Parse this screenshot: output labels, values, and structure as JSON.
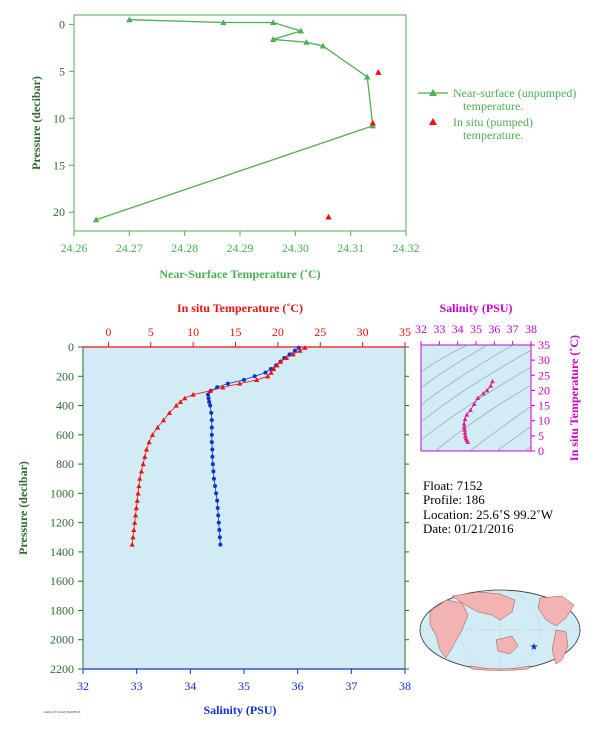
{
  "chart_data": [
    {
      "type": "line",
      "xlabel": "Near-Surface Temperature (˚C)",
      "ylabel": "Pressure (decibar)",
      "xlim": [
        24.26,
        24.32
      ],
      "ylim": [
        22,
        -1
      ],
      "xticks": [
        "24.26",
        "24.27",
        "24.28",
        "24.29",
        "24.30",
        "24.31",
        "24.32"
      ],
      "yticks": [
        "0",
        "5",
        "10",
        "15",
        "20"
      ],
      "series": [
        {
          "name": "Near-surface (unpumped) temperature.",
          "color": "#4caf50",
          "x": [
            24.27,
            24.287,
            24.296,
            24.301,
            24.296,
            24.302,
            24.305,
            24.313,
            24.314,
            24.264
          ],
          "y": [
            -0.5,
            -0.2,
            -0.2,
            0.7,
            1.6,
            1.9,
            2.3,
            5.6,
            10.8,
            20.8
          ]
        },
        {
          "name": "In situ (pumped) temperature.",
          "color": "#ee1111",
          "x": [
            24.315,
            24.314,
            24.306
          ],
          "y": [
            5.1,
            10.5,
            20.5
          ]
        }
      ],
      "legend": [
        "Near-surface (unpumped)",
        "temperature.",
        "In situ (pumped)",
        "temperature."
      ]
    },
    {
      "type": "scatter",
      "ylabel": "Pressure (decibar)",
      "x_bottom_label": "Salinity (PSU)",
      "x_top_label": "In situ Temperature (˚C)",
      "salinity_lim": [
        32,
        38
      ],
      "temperature_lim": [
        -3,
        35
      ],
      "pressure_lim": [
        0,
        2200
      ],
      "salinity_ticks": [
        "32",
        "33",
        "34",
        "35",
        "36",
        "37",
        "38"
      ],
      "temperature_ticks": [
        "0",
        "5",
        "10",
        "15",
        "20",
        "25",
        "30",
        "35"
      ],
      "pressure_ticks": [
        "0",
        "200",
        "400",
        "600",
        "800",
        "1000",
        "1200",
        "1400",
        "1600",
        "1800",
        "2000",
        "2200"
      ],
      "temperature": {
        "p": [
          5,
          25,
          50,
          75,
          100,
          125,
          150,
          175,
          200,
          225,
          250,
          275,
          300,
          325,
          350,
          375,
          400,
          450,
          500,
          550,
          600,
          650,
          700,
          750,
          800,
          850,
          900,
          950,
          1000,
          1050,
          1100,
          1150,
          1200,
          1250,
          1300,
          1350
        ],
        "t": [
          23.2,
          22.6,
          21.8,
          21.0,
          20.3,
          19.9,
          19.5,
          19.2,
          18.8,
          17.5,
          15.5,
          13.5,
          12.0,
          10.0,
          9.0,
          8.5,
          8.0,
          7.2,
          6.5,
          5.8,
          5.2,
          4.8,
          4.5,
          4.3,
          4.1,
          3.9,
          3.7,
          3.6,
          3.5,
          3.4,
          3.3,
          3.2,
          3.1,
          3.0,
          2.9,
          2.8
        ]
      },
      "salinity": {
        "p": [
          5,
          25,
          50,
          75,
          100,
          125,
          150,
          175,
          200,
          225,
          250,
          275,
          300,
          325,
          350,
          375,
          400,
          450,
          500,
          550,
          600,
          650,
          700,
          750,
          800,
          850,
          900,
          950,
          1000,
          1050,
          1100,
          1150,
          1200,
          1250,
          1300,
          1350
        ],
        "s": [
          36.02,
          35.95,
          35.85,
          35.75,
          35.68,
          35.6,
          35.5,
          35.4,
          35.2,
          35.0,
          34.7,
          34.5,
          34.38,
          34.33,
          34.34,
          34.35,
          34.37,
          34.39,
          34.4,
          34.4,
          34.4,
          34.4,
          34.41,
          34.41,
          34.42,
          34.43,
          34.44,
          34.46,
          34.48,
          34.5,
          34.51,
          34.52,
          34.53,
          34.54,
          34.55,
          34.56
        ]
      }
    },
    {
      "type": "scatter",
      "xlabel": "Salinity (PSU)",
      "ylabel": "In situ Temperature (˚C)",
      "xlim": [
        32,
        38
      ],
      "ylim": [
        0,
        35
      ],
      "xticks": [
        "32",
        "33",
        "34",
        "35",
        "36",
        "37",
        "38"
      ],
      "yticks": [
        "0",
        "5",
        "10",
        "15",
        "20",
        "25",
        "30",
        "35"
      ],
      "s": [
        35.9,
        35.8,
        35.6,
        35.4,
        35.1,
        34.9,
        34.7,
        34.5,
        34.4,
        34.35,
        34.36,
        34.38,
        34.4,
        34.42,
        34.45,
        34.5,
        34.55
      ],
      "t": [
        23.0,
        21.5,
        20.0,
        19.0,
        17.5,
        15.5,
        13.5,
        12.0,
        10.5,
        9.0,
        8.0,
        7.0,
        6.0,
        5.0,
        4.2,
        3.6,
        3.0
      ]
    }
  ],
  "float_info": {
    "float": "Float:  7152",
    "profile": "Profile:  186",
    "location": "Location:  25.6˚S  99.2˚W",
    "date": "Date:  01/21/2016"
  },
  "footer": "ARGO FLOAT PROFILE",
  "colors": {
    "green": "#4caf50",
    "red": "#ee1111",
    "blue": "#1133cc",
    "magenta": "#cc00cc",
    "panel": "#d2ecf6",
    "dark_green": "#2e6b2e"
  }
}
